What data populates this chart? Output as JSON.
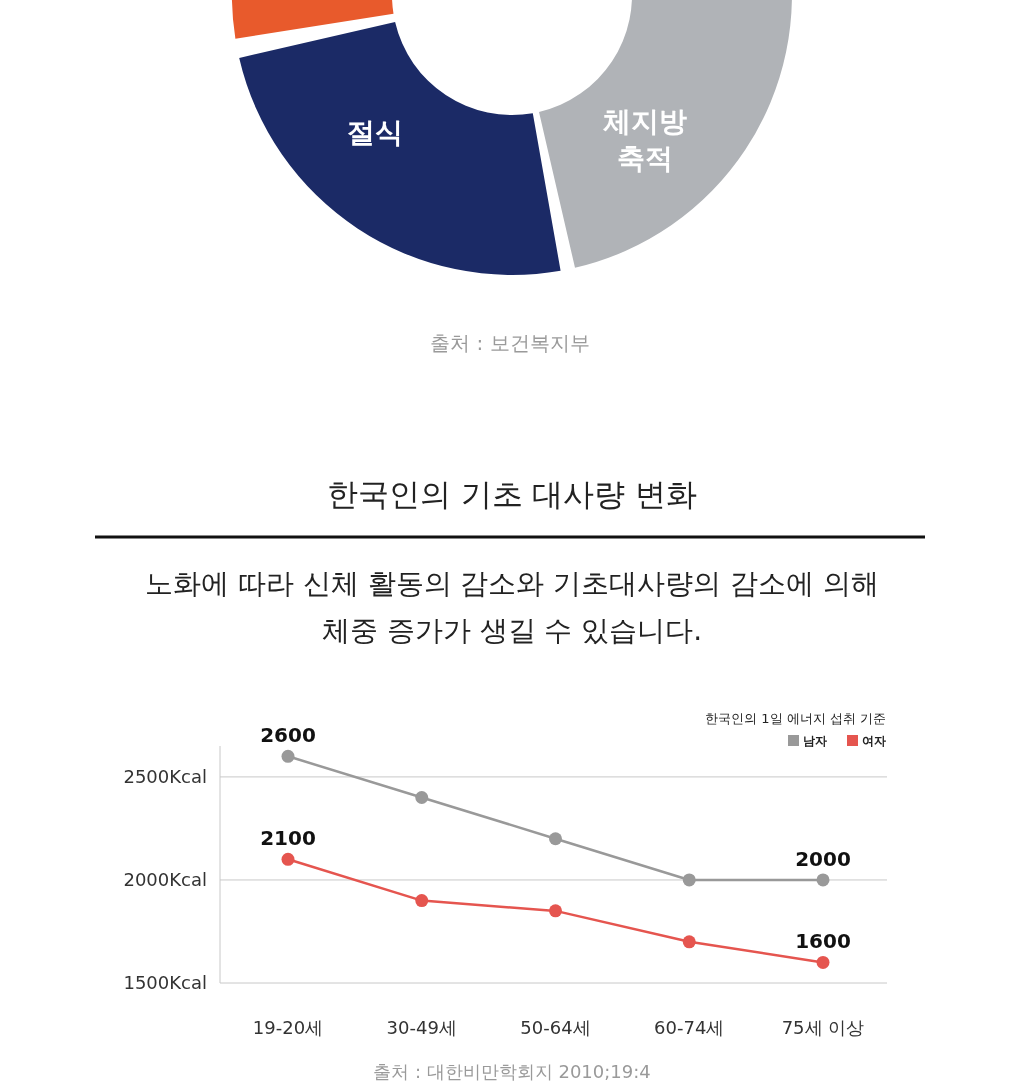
{
  "chart_data": [
    {
      "type": "other",
      "annotations": [
        "절식",
        "체지방 축적",
        "출처 : 보건복지부"
      ]
    },
    {
      "type": "line",
      "title": "한국인의 기초 대사량 변화",
      "subtitle": "노화에 따라 신체 활동의 감소와 기초대사량의 감소에 의해 체중 증가가 생길 수 있습니다.",
      "legend_title": "한국인의 1일 에너지 섭취 기준",
      "categories": [
        "19-20세",
        "30-49세",
        "50-64세",
        "60-74세",
        "75세 이상"
      ],
      "series": [
        {
          "name": "남자",
          "color": "#999999",
          "values": [
            2600,
            2400,
            2200,
            2000,
            2000
          ],
          "value_labels": [
            "2600",
            null,
            null,
            null,
            "2000"
          ]
        },
        {
          "name": "여자",
          "color": "#e5554f",
          "values": [
            2100,
            1900,
            1850,
            1700,
            1600
          ],
          "value_labels": [
            "2100",
            null,
            null,
            null,
            "1600"
          ]
        }
      ],
      "ylim": [
        1500,
        2650
      ],
      "yticks": [
        {
          "value": 1500,
          "label": "1500Kcal"
        },
        {
          "value": 2000,
          "label": "2000Kcal"
        },
        {
          "value": 2500,
          "label": "2500Kcal"
        }
      ],
      "grid": "y",
      "legend": "top right",
      "marker": "circle",
      "annotations": [
        "출처 : 대한비만학회지 2010;19:4"
      ]
    }
  ]
}
